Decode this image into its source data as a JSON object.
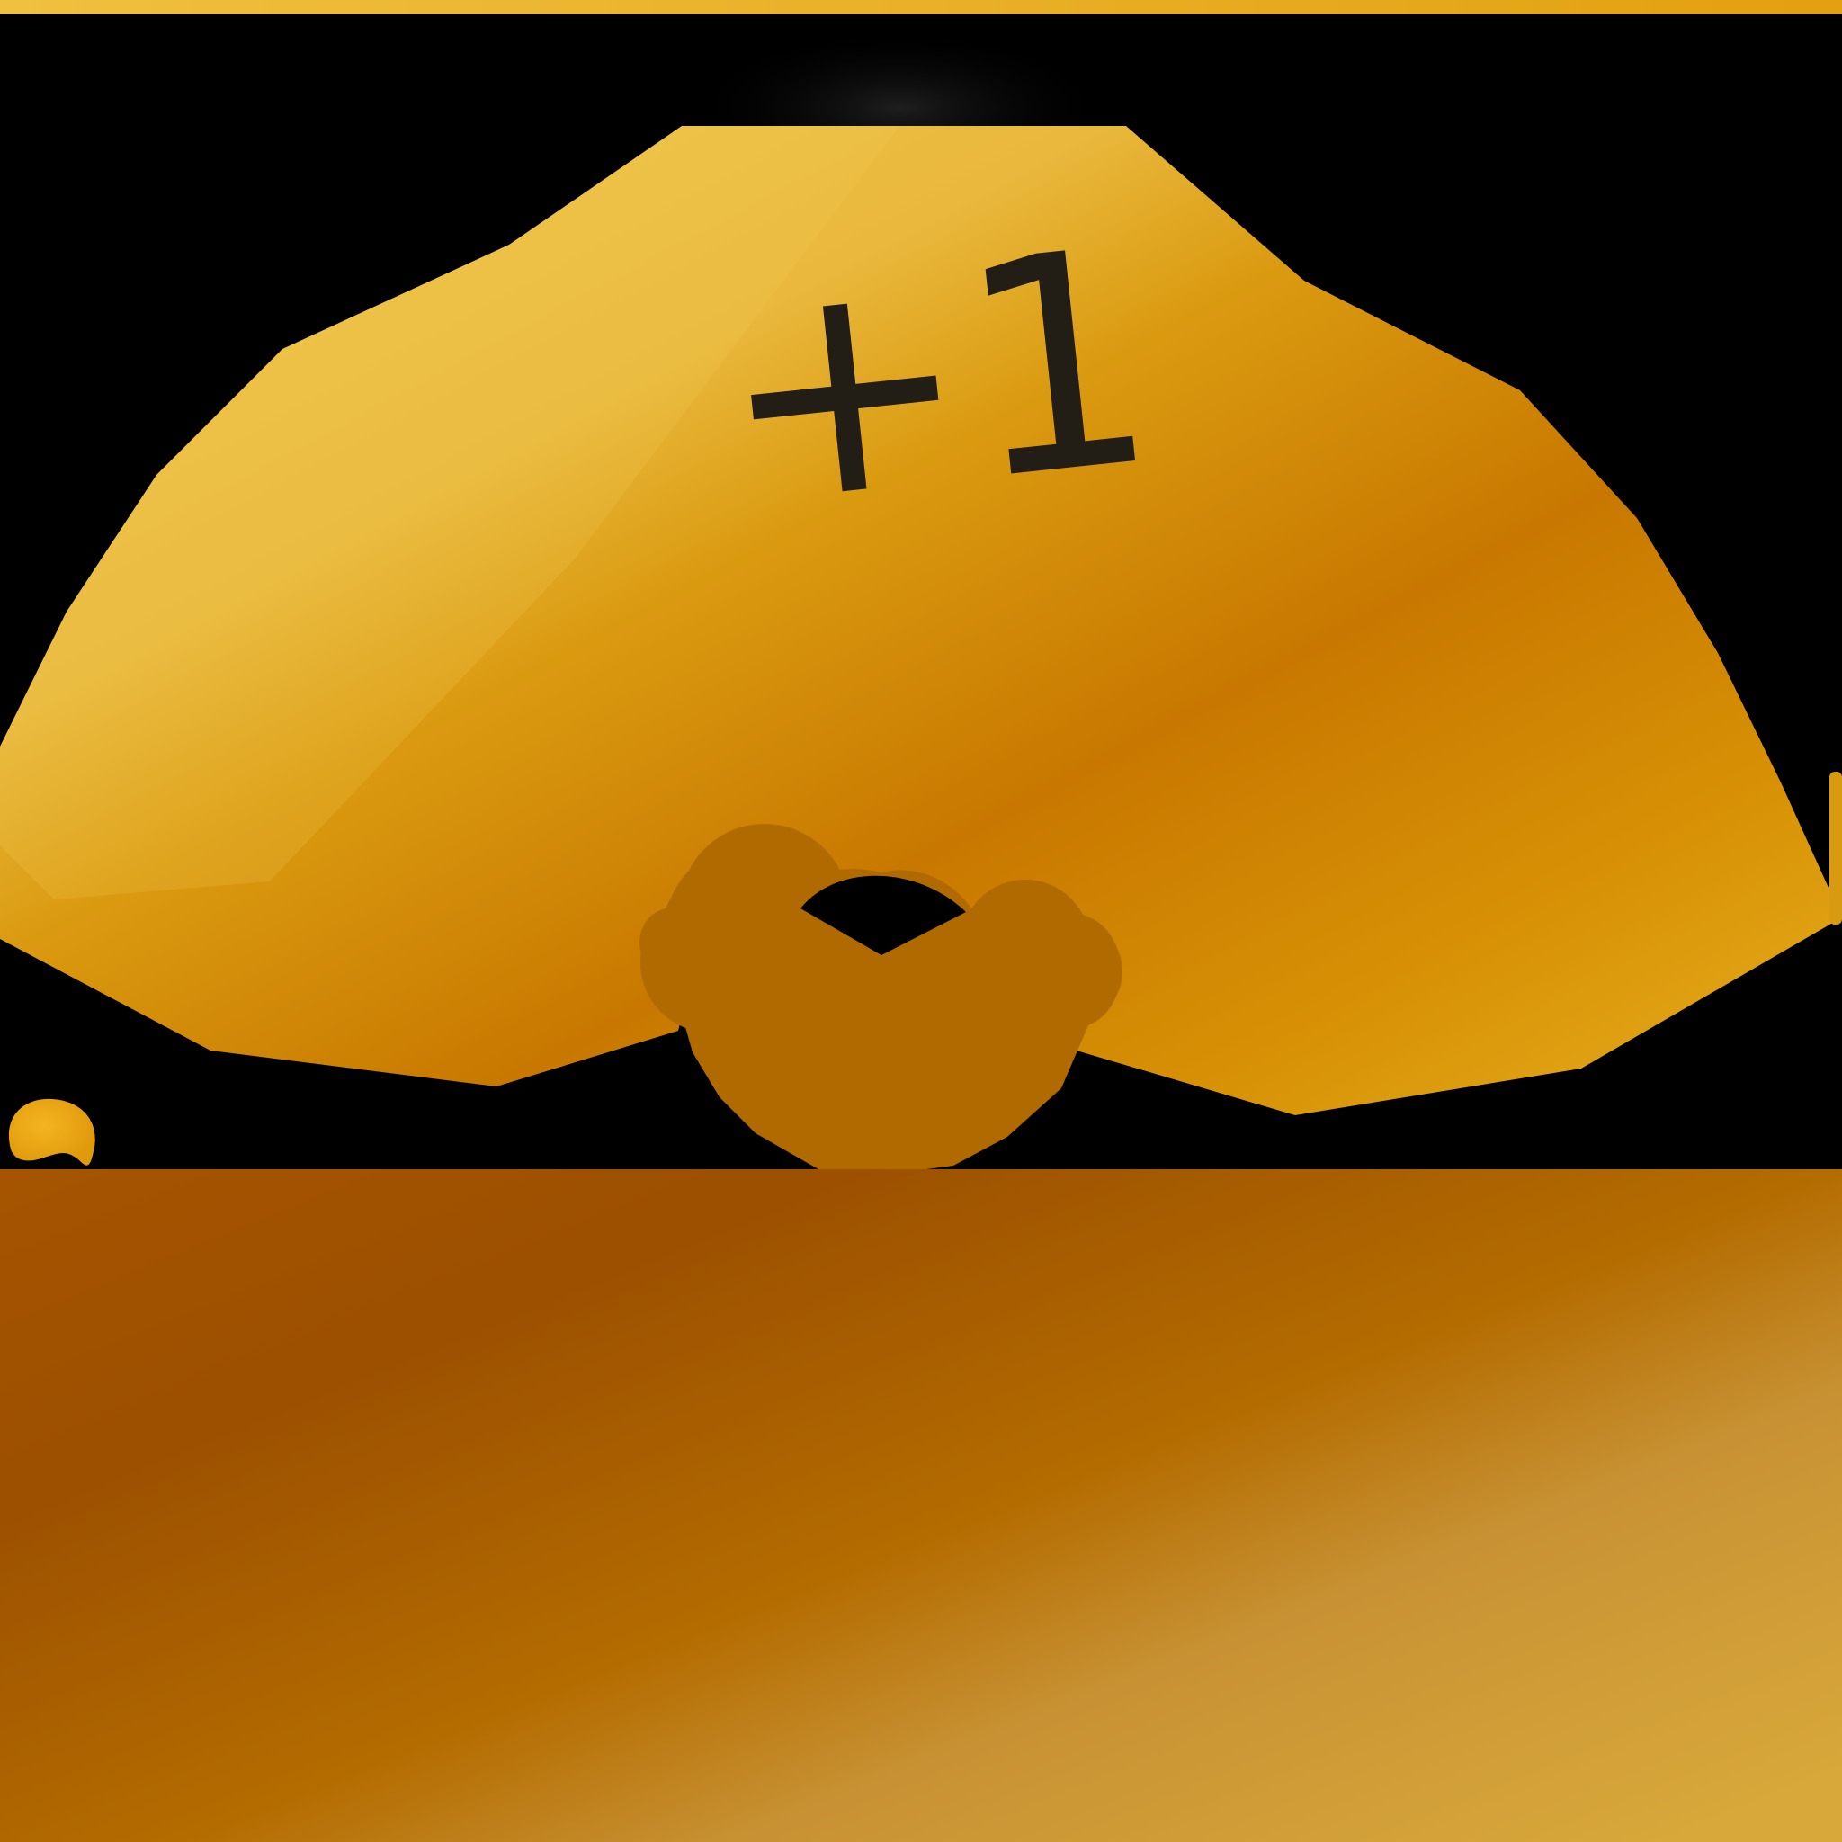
{
  "badge": {
    "label": "+1"
  },
  "colors": {
    "background": "#000000",
    "gold_light": "#f0c84a",
    "gold_mid": "#e0a018",
    "gold_dark": "#c87800",
    "knot": "#b06a00",
    "floor_dark": "#9c5000",
    "floor_light": "#d6a83c",
    "text": "#221e16"
  },
  "icons": {
    "main": "plus-one-badge-icon",
    "corner": "small-coin-icon"
  }
}
